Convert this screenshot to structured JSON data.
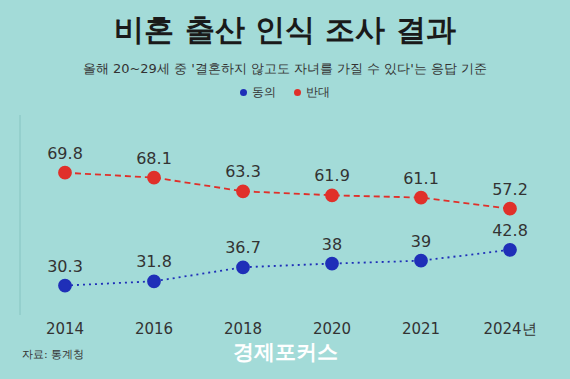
{
  "chart_data": {
    "type": "line",
    "title": "비혼 출산 인식 조사 결과",
    "subtitle": "올해 20~29세 중 '결혼하지 않고도 자녀를 가질 수 있다'는 응답 기준",
    "annotations": [
      "자료: 통계청",
      "경제포커스"
    ],
    "categories": [
      "2014",
      "2016",
      "2018",
      "2020",
      "2021",
      "2024년"
    ],
    "series": [
      {
        "name": "동의",
        "color": "#1f2fb8",
        "line_style": "dotted",
        "marker": "circle",
        "values": [
          30.3,
          31.8,
          36.7,
          38,
          39,
          42.8
        ]
      },
      {
        "name": "반대",
        "color": "#e0302a",
        "line_style": "dashed",
        "marker": "circle",
        "values": [
          69.8,
          68.1,
          63.3,
          61.9,
          61.1,
          57.2
        ]
      }
    ],
    "ylim": [
      20,
      90
    ],
    "yticks": [],
    "grid": false,
    "legend": "top",
    "data_labels": true,
    "tick_labels": "x"
  }
}
